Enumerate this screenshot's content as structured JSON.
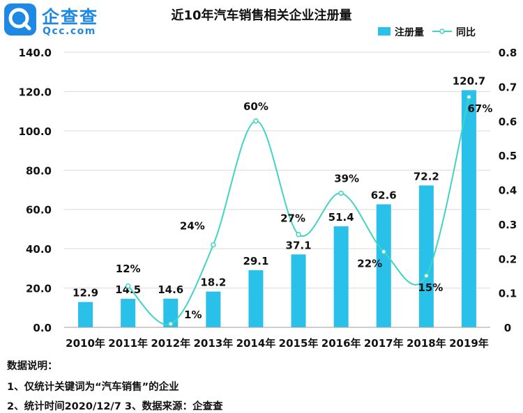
{
  "brand": {
    "name": "企查查",
    "domain": "Qcc.com",
    "color": "#1e88e5"
  },
  "chart_data": {
    "type": "bar",
    "title": "近10年汽车销售相关企业注册量",
    "categories": [
      "2010年",
      "2011年",
      "2012年",
      "2013年",
      "2014年",
      "2015年",
      "2016年",
      "2017年",
      "2018年",
      "2019年"
    ],
    "series": [
      {
        "name": "注册量",
        "type": "bar",
        "axis": "left",
        "color": "#29c0ea",
        "values": [
          12.9,
          14.5,
          14.6,
          18.2,
          29.1,
          37.1,
          51.4,
          62.6,
          72.2,
          120.7
        ],
        "labels": [
          "12.9",
          "14.5",
          "14.6",
          "18.2",
          "29.1",
          "37.1",
          "51.4",
          "62.6",
          "72.2",
          "120.7"
        ]
      },
      {
        "name": "同比",
        "type": "line",
        "axis": "right",
        "smooth": true,
        "color": "#3fd4c4",
        "values": [
          null,
          0.12,
          0.01,
          0.24,
          0.6,
          0.27,
          0.39,
          0.22,
          0.15,
          0.67
        ],
        "labels": [
          "",
          "12%",
          "1%",
          "24%",
          "60%",
          "27%",
          "39%",
          "22%",
          "15%",
          "67%"
        ]
      }
    ],
    "y_left": {
      "min": 0,
      "max": 140,
      "ticks": [
        "0.0",
        "20.0",
        "40.0",
        "60.0",
        "80.0",
        "100.0",
        "120.0",
        "140.0"
      ]
    },
    "y_right": {
      "min": 0,
      "max": 0.8,
      "ticks": [
        "0",
        "0.1",
        "0.2",
        "0.3",
        "0.4",
        "0.5",
        "0.6",
        "0.7",
        "0.8"
      ]
    },
    "grid": true,
    "legend_position": "top-right"
  },
  "notes": {
    "heading": "数据说明：",
    "line1": "1、仅统计关键词为“汽车销售”的企业",
    "line2": "2、统计时间2020/12/7   3、数据来源：企查查"
  }
}
